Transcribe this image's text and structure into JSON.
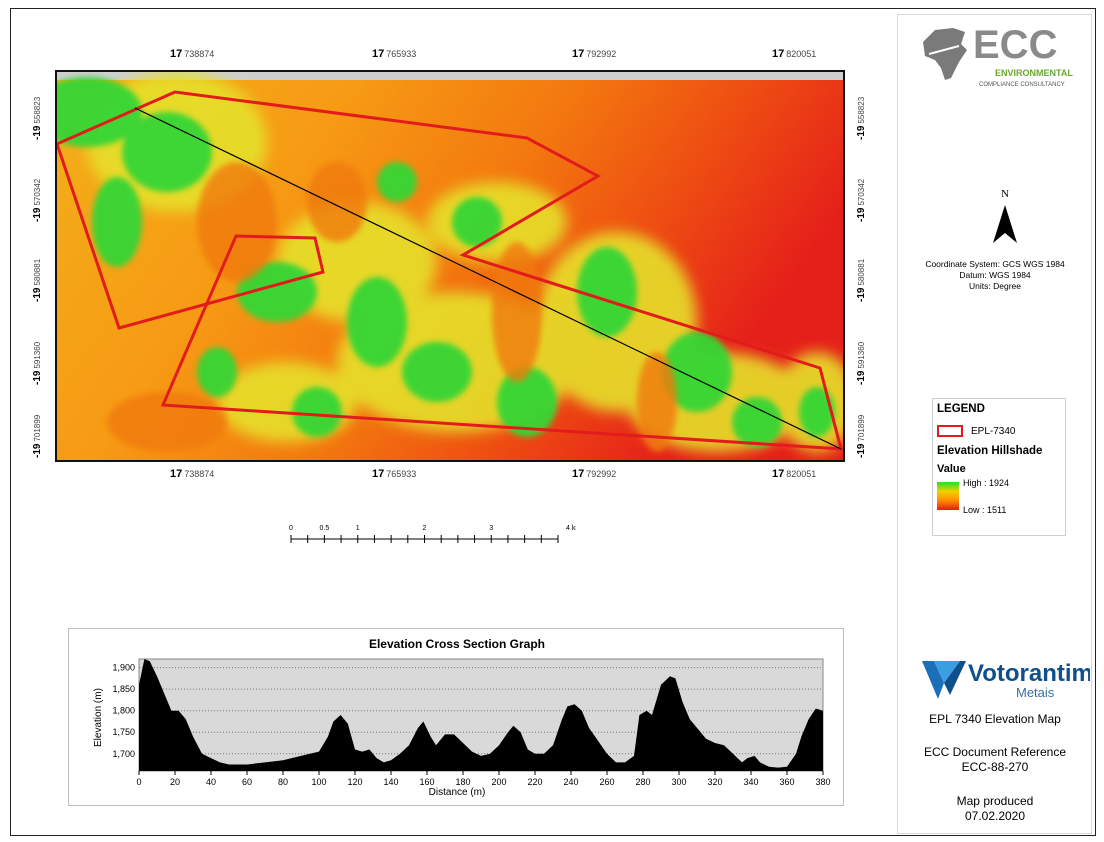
{
  "map": {
    "top_ticks": [
      {
        "prefix": "17",
        "value": "738874"
      },
      {
        "prefix": "17",
        "value": "765933"
      },
      {
        "prefix": "17",
        "value": "792992"
      },
      {
        "prefix": "17",
        "value": "820051"
      }
    ],
    "bottom_ticks": [
      {
        "prefix": "17",
        "value": "738874"
      },
      {
        "prefix": "17",
        "value": "765933"
      },
      {
        "prefix": "17",
        "value": "792992"
      },
      {
        "prefix": "17",
        "value": "820051"
      }
    ],
    "side_ticks": [
      {
        "prefix": "-19",
        "value": "558823"
      },
      {
        "prefix": "-19",
        "value": "570342"
      },
      {
        "prefix": "-19",
        "value": "580881"
      },
      {
        "prefix": "-19",
        "value": "591360"
      },
      {
        "prefix": "-19",
        "value": "701899"
      }
    ],
    "colors": {
      "polygon": "#e21c1c",
      "profile_line": "#000000"
    }
  },
  "scale_bar": {
    "labels": [
      "0",
      "0.5",
      "1",
      "2",
      "3",
      "4 km"
    ]
  },
  "panel": {
    "logo_text": "ECC",
    "logo_sub1": "ENVIRONMENTAL",
    "logo_sub2": "COMPLIANCE CONSULTANCY",
    "north_label": "N",
    "coordinate_system": "Coordinate System: GCS WGS 1984",
    "datum": "Datum: WGS 1984",
    "units": "Units: Degree",
    "legend": {
      "title": "LEGEND",
      "polygon_label": "EPL-7340",
      "layer_title": "Elevation Hillshade",
      "value_label": "Value",
      "high": "High : 1924",
      "low": "Low : 1511"
    },
    "company": "Votorantim",
    "company_sub": "Metais",
    "map_title": "EPL 7340 Elevation Map",
    "doc_ref_label": "ECC Document Reference",
    "doc_ref": "ECC-88-270",
    "produced_label": "Map produced",
    "produced_date": "07.02.2020"
  },
  "chart_data": {
    "type": "area",
    "title": "Elevation Cross Section Graph",
    "xlabel": "Distance (m)",
    "ylabel": "Elevation (m)",
    "xlim": [
      0,
      380
    ],
    "ylim": [
      1660,
      1920
    ],
    "x_ticks": [
      0,
      20,
      40,
      60,
      80,
      100,
      120,
      140,
      160,
      180,
      200,
      220,
      240,
      260,
      280,
      300,
      320,
      340,
      360,
      380
    ],
    "y_ticks": [
      1700,
      1750,
      1800,
      1850,
      1900
    ],
    "y_tick_labels": [
      "1,700",
      "1,750",
      "1,800",
      "1,850",
      "1,900"
    ],
    "grid": true,
    "series": [
      {
        "x": [
          0,
          3,
          6,
          10,
          14,
          18,
          22,
          26,
          30,
          35,
          40,
          45,
          50,
          60,
          70,
          80,
          90,
          95,
          100,
          105,
          108,
          112,
          116,
          120,
          124,
          128,
          132,
          136,
          140,
          145,
          150,
          155,
          158,
          162,
          165,
          170,
          175,
          180,
          185,
          190,
          195,
          200,
          205,
          208,
          212,
          216,
          220,
          225,
          230,
          235,
          238,
          242,
          246,
          250,
          255,
          260,
          265,
          270,
          275,
          278,
          282,
          285,
          290,
          295,
          298,
          302,
          306,
          310,
          315,
          320,
          325,
          330,
          335,
          338,
          342,
          345,
          350,
          355,
          360,
          365,
          368,
          372,
          376,
          380
        ],
        "y": [
          1860,
          1920,
          1915,
          1880,
          1840,
          1800,
          1800,
          1780,
          1740,
          1700,
          1690,
          1680,
          1675,
          1675,
          1680,
          1685,
          1695,
          1700,
          1705,
          1740,
          1775,
          1790,
          1770,
          1710,
          1705,
          1710,
          1690,
          1680,
          1685,
          1700,
          1720,
          1760,
          1775,
          1740,
          1720,
          1745,
          1745,
          1725,
          1705,
          1695,
          1700,
          1720,
          1750,
          1765,
          1750,
          1710,
          1700,
          1700,
          1720,
          1780,
          1810,
          1815,
          1800,
          1760,
          1730,
          1700,
          1680,
          1680,
          1695,
          1790,
          1800,
          1790,
          1860,
          1880,
          1875,
          1820,
          1780,
          1760,
          1735,
          1725,
          1720,
          1700,
          1680,
          1690,
          1695,
          1680,
          1670,
          1668,
          1670,
          1700,
          1740,
          1780,
          1805,
          1800
        ]
      }
    ]
  }
}
